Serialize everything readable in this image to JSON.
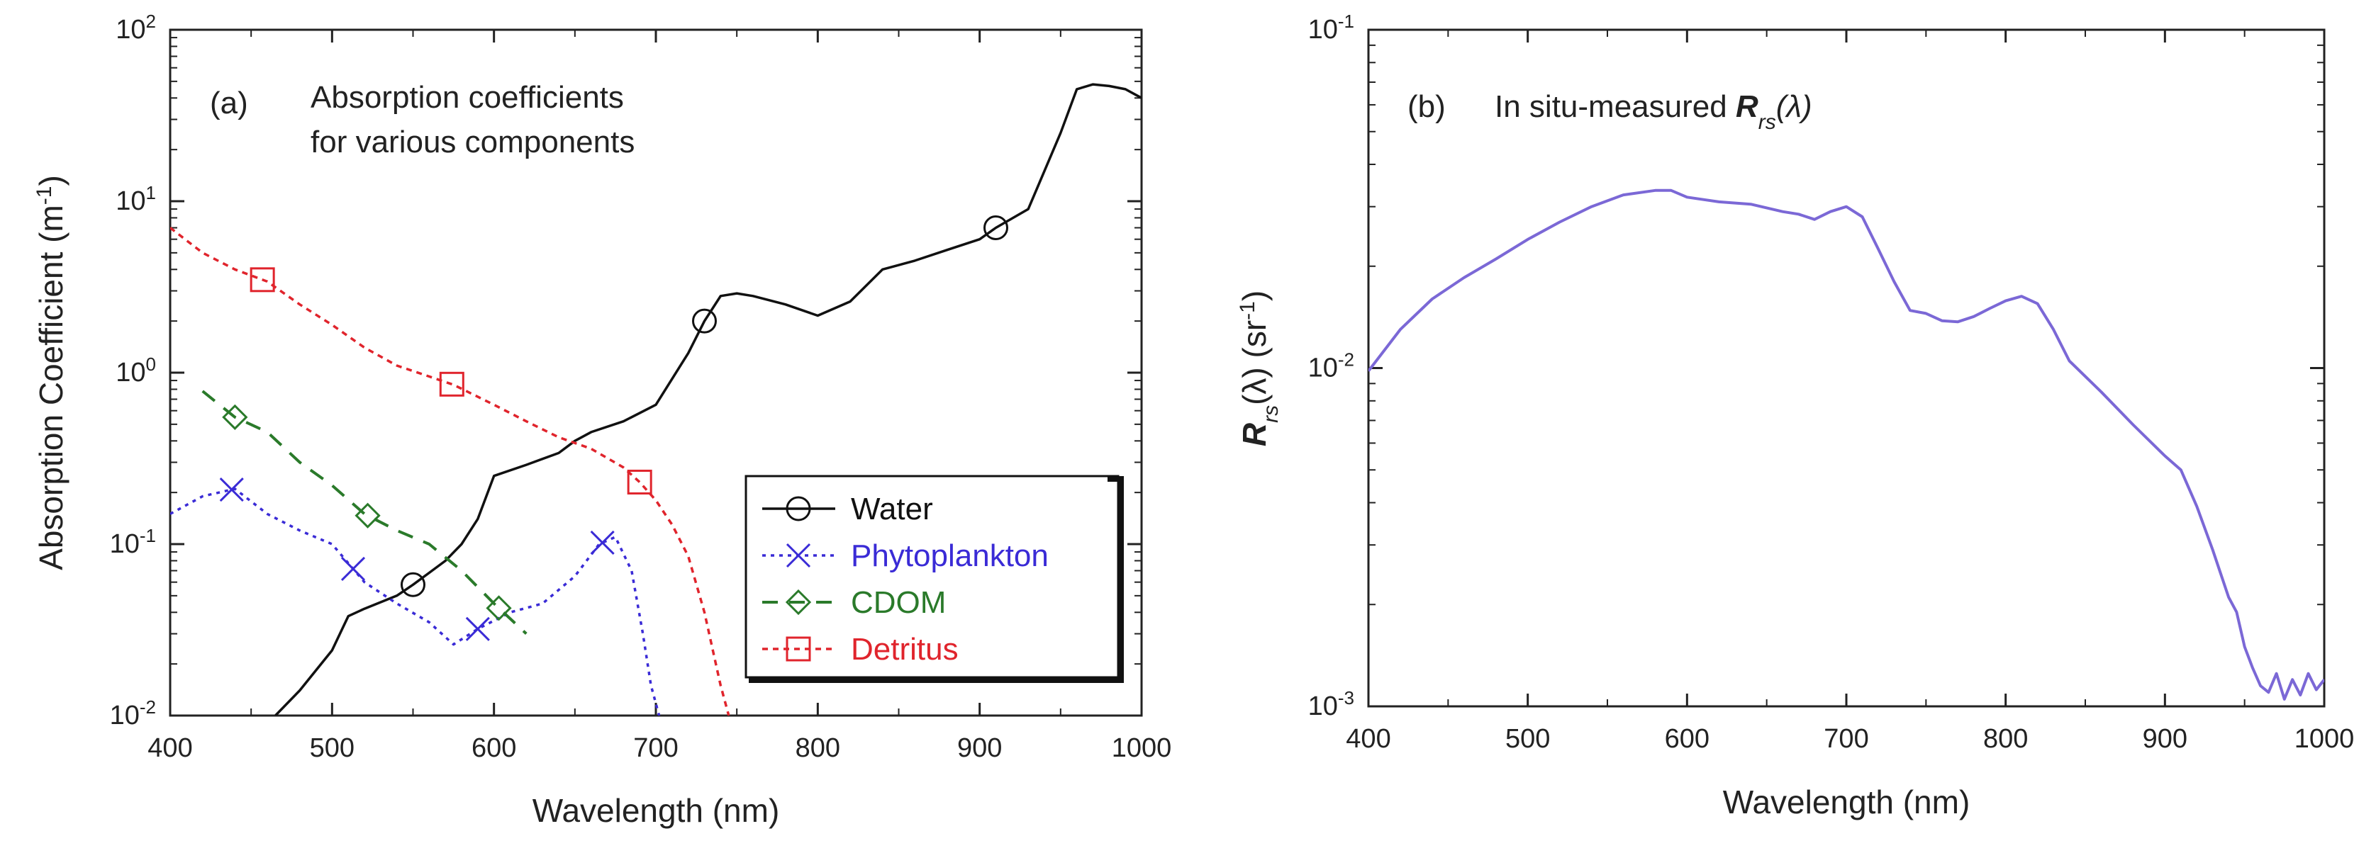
{
  "chart_data": [
    {
      "type": "line",
      "panel_label": "(a)",
      "title_line1": "Absorption coefficients",
      "title_line2": "for various components",
      "xlabel": "Wavelength (nm)",
      "ylabel": "Absorption Coefficient",
      "ylabel_unit_base": "m",
      "ylabel_unit_exp": "-1",
      "xlim": [
        400,
        1000
      ],
      "ylim": [
        0.01,
        100
      ],
      "yscale": "log",
      "xticks": [
        "400",
        "500",
        "600",
        "700",
        "800",
        "900",
        "1000"
      ],
      "yticks": [
        {
          "base": "10",
          "exp": "-2"
        },
        {
          "base": "10",
          "exp": "-1"
        },
        {
          "base": "10",
          "exp": "0"
        },
        {
          "base": "10",
          "exp": "1"
        },
        {
          "base": "10",
          "exp": "2"
        }
      ],
      "legend_position": "lower-right",
      "series": [
        {
          "name": "Water",
          "color": "#111111",
          "marker": "circle",
          "x": [
            465,
            480,
            500,
            510,
            520,
            540,
            550,
            560,
            570,
            580,
            590,
            600,
            620,
            640,
            650,
            660,
            680,
            700,
            720,
            730,
            740,
            750,
            760,
            780,
            800,
            820,
            840,
            860,
            880,
            900,
            910,
            930,
            950,
            960,
            970,
            980,
            990,
            1000
          ],
          "y": [
            0.01,
            0.014,
            0.024,
            0.038,
            0.042,
            0.05,
            0.058,
            0.068,
            0.08,
            0.1,
            0.14,
            0.25,
            0.29,
            0.34,
            0.4,
            0.45,
            0.52,
            0.65,
            1.3,
            2.0,
            2.8,
            2.9,
            2.8,
            2.5,
            2.15,
            2.6,
            4.0,
            4.5,
            5.2,
            6.0,
            7.0,
            9.0,
            25,
            45,
            48,
            47,
            45,
            40
          ],
          "marker_x": [
            550,
            730,
            910
          ]
        },
        {
          "name": "Phytoplankton",
          "color": "#3a2bd6",
          "marker": "x",
          "x": [
            400,
            420,
            440,
            460,
            480,
            500,
            520,
            540,
            560,
            575,
            590,
            610,
            630,
            650,
            665,
            675,
            685,
            692,
            697,
            702
          ],
          "y": [
            0.15,
            0.19,
            0.21,
            0.15,
            0.12,
            0.1,
            0.06,
            0.045,
            0.035,
            0.026,
            0.032,
            0.04,
            0.045,
            0.065,
            0.1,
            0.11,
            0.07,
            0.03,
            0.015,
            0.01
          ],
          "marker_x": [
            438,
            513,
            590,
            667
          ]
        },
        {
          "name": "CDOM",
          "color": "#2a7a2a",
          "marker": "diamond",
          "x": [
            420,
            440,
            460,
            480,
            500,
            520,
            540,
            560,
            580,
            600,
            620
          ],
          "y": [
            0.78,
            0.55,
            0.45,
            0.3,
            0.22,
            0.15,
            0.12,
            0.1,
            0.07,
            0.045,
            0.03
          ],
          "marker_x": [
            440,
            522,
            603
          ]
        },
        {
          "name": "Detritus",
          "color": "#e0242c",
          "marker": "square",
          "x": [
            400,
            420,
            440,
            460,
            480,
            500,
            520,
            540,
            560,
            575,
            600,
            620,
            640,
            660,
            680,
            690,
            700,
            710,
            720,
            730,
            740,
            745
          ],
          "y": [
            7.0,
            5.0,
            4.0,
            3.4,
            2.5,
            1.9,
            1.4,
            1.1,
            0.95,
            0.85,
            0.65,
            0.52,
            0.42,
            0.36,
            0.28,
            0.23,
            0.18,
            0.13,
            0.085,
            0.04,
            0.015,
            0.01
          ],
          "marker_x": [
            457,
            574,
            690
          ]
        }
      ]
    },
    {
      "type": "line",
      "panel_label": "(b)",
      "title_prefix": "In situ-measured ",
      "title_symbol": "R",
      "title_sub": "rs",
      "title_suffix": "(λ)",
      "xlabel": "Wavelength (nm)",
      "ylabel_symbol": "R",
      "ylabel_sub": "rs",
      "ylabel_mid": "(λ) (sr",
      "ylabel_exp": "-1",
      "ylabel_end": ")",
      "xlim": [
        400,
        1000
      ],
      "ylim": [
        0.001,
        0.1
      ],
      "yscale": "log",
      "xticks": [
        "400",
        "500",
        "600",
        "700",
        "800",
        "900",
        "1000"
      ],
      "yticks": [
        {
          "base": "10",
          "exp": "-3"
        },
        {
          "base": "10",
          "exp": "-2"
        },
        {
          "base": "10",
          "exp": "-1"
        }
      ],
      "series": [
        {
          "name": "Rrs",
          "color": "#7b68d6",
          "x": [
            400,
            420,
            440,
            460,
            480,
            500,
            520,
            540,
            560,
            580,
            590,
            600,
            620,
            640,
            660,
            670,
            680,
            690,
            700,
            710,
            720,
            730,
            740,
            750,
            760,
            770,
            780,
            790,
            800,
            810,
            820,
            830,
            840,
            860,
            880,
            900,
            910,
            920,
            930,
            940,
            945,
            950,
            955,
            960,
            965,
            970,
            975,
            980,
            985,
            990,
            995,
            1000
          ],
          "y": [
            0.0098,
            0.013,
            0.016,
            0.0185,
            0.021,
            0.024,
            0.027,
            0.03,
            0.0325,
            0.0335,
            0.0335,
            0.032,
            0.031,
            0.0305,
            0.029,
            0.0285,
            0.0275,
            0.029,
            0.03,
            0.028,
            0.0225,
            0.018,
            0.0148,
            0.0145,
            0.0138,
            0.0137,
            0.0142,
            0.015,
            0.0158,
            0.0163,
            0.0155,
            0.013,
            0.0105,
            0.0085,
            0.0068,
            0.0055,
            0.005,
            0.0039,
            0.0029,
            0.0021,
            0.0019,
            0.0015,
            0.0013,
            0.00115,
            0.0011,
            0.00125,
            0.00105,
            0.0012,
            0.00108,
            0.00125,
            0.00112,
            0.0012
          ]
        }
      ]
    }
  ]
}
